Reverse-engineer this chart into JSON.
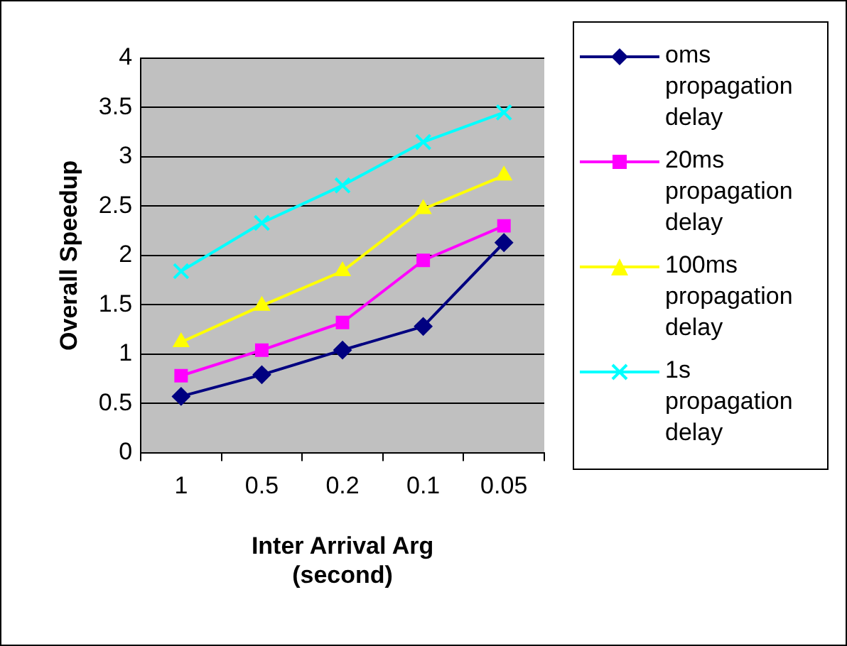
{
  "chart_data": {
    "type": "line",
    "xlabel": "Inter Arrival Arg (second)",
    "ylabel": "Overall Speedup",
    "categories": [
      "1",
      "0.5",
      "0.2",
      "0.1",
      "0.05"
    ],
    "ylim": [
      0,
      4
    ],
    "yticks": [
      0,
      0.5,
      1,
      1.5,
      2,
      2.5,
      3,
      3.5,
      4
    ],
    "grid": "y",
    "legend": "right",
    "series": [
      {
        "name": "oms propagation delay",
        "color": "#000080",
        "marker": "diamond",
        "values": [
          0.57,
          0.79,
          1.04,
          1.28,
          2.13
        ]
      },
      {
        "name": "20ms propagation delay",
        "color": "#ff00ff",
        "marker": "square",
        "values": [
          0.78,
          1.04,
          1.32,
          1.95,
          2.3
        ]
      },
      {
        "name": "100ms propagation delay",
        "color": "#ffff00",
        "marker": "triangle",
        "values": [
          1.12,
          1.49,
          1.84,
          2.47,
          2.81
        ]
      },
      {
        "name": "1s propagation delay",
        "color": "#00ffff",
        "marker": "cross",
        "values": [
          1.84,
          2.33,
          2.71,
          3.15,
          3.45
        ]
      }
    ]
  }
}
